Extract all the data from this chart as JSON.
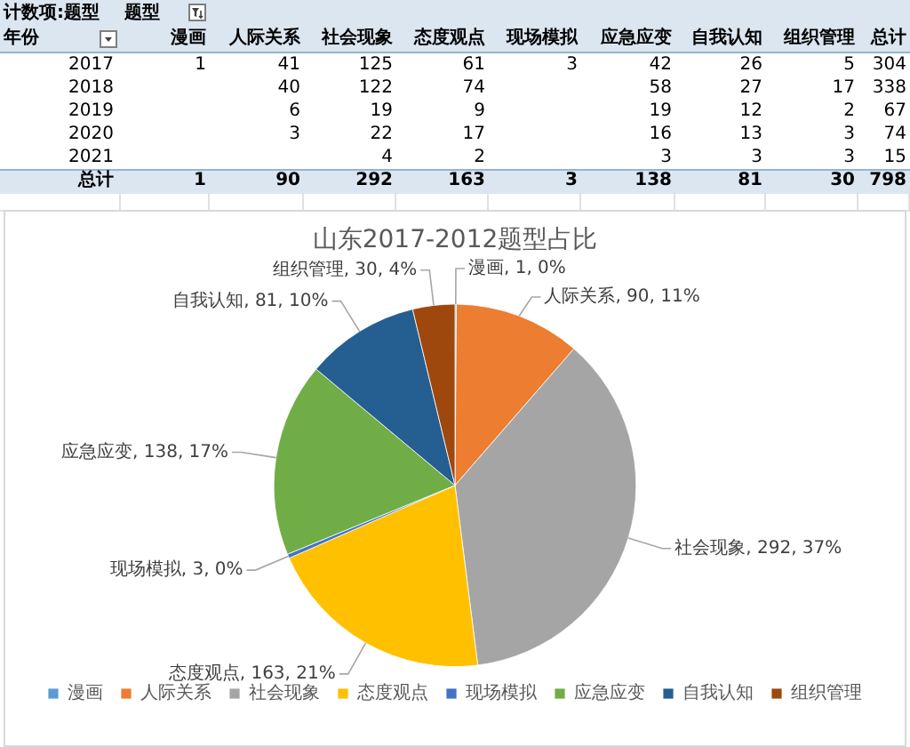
{
  "chart_data": [
    {
      "type": "heatmap",
      "title": "计数项:题型",
      "xlabel": "题型",
      "ylabel": "年份",
      "categories": [
        "漫画",
        "人际关系",
        "社会现象",
        "态度观点",
        "现场模拟",
        "应急应变",
        "自我认知",
        "组织管理",
        "总计"
      ],
      "y_categories": [
        "2017",
        "2018",
        "2019",
        "2020",
        "2021",
        "总计"
      ],
      "cells": [
        [
          1,
          41,
          125,
          61,
          3,
          42,
          26,
          5,
          304
        ],
        [
          null,
          40,
          122,
          74,
          null,
          58,
          27,
          17,
          338
        ],
        [
          null,
          6,
          19,
          9,
          null,
          19,
          12,
          2,
          67
        ],
        [
          null,
          3,
          22,
          17,
          null,
          16,
          13,
          3,
          74
        ],
        [
          null,
          null,
          4,
          2,
          null,
          3,
          3,
          3,
          15
        ],
        [
          1,
          90,
          292,
          163,
          3,
          138,
          81,
          30,
          798
        ]
      ],
      "data_labels": true
    },
    {
      "type": "pie",
      "title": "山东2017-2012题型占比",
      "categories": [
        "漫画",
        "人际关系",
        "社会现象",
        "态度观点",
        "现场模拟",
        "应急应变",
        "自我认知",
        "组织管理"
      ],
      "values": [
        1,
        90,
        292,
        163,
        3,
        138,
        81,
        30
      ],
      "colors": [
        "#5b9bd5",
        "#ed7d31",
        "#a5a5a5",
        "#ffc000",
        "#4472c4",
        "#70ad47",
        "#255e91",
        "#9e480e"
      ],
      "value_labels": [
        "漫画, 1, 0%",
        "人际关系, 90, 11%",
        "社会现象, 292, 37%",
        "态度观点, 163, 21%",
        "现场模拟, 3, 0%",
        "应急应变, 138, 17%",
        "自我认知, 81, 10%",
        "组织管理, 30, 4%"
      ],
      "legend": "bottom"
    }
  ]
}
